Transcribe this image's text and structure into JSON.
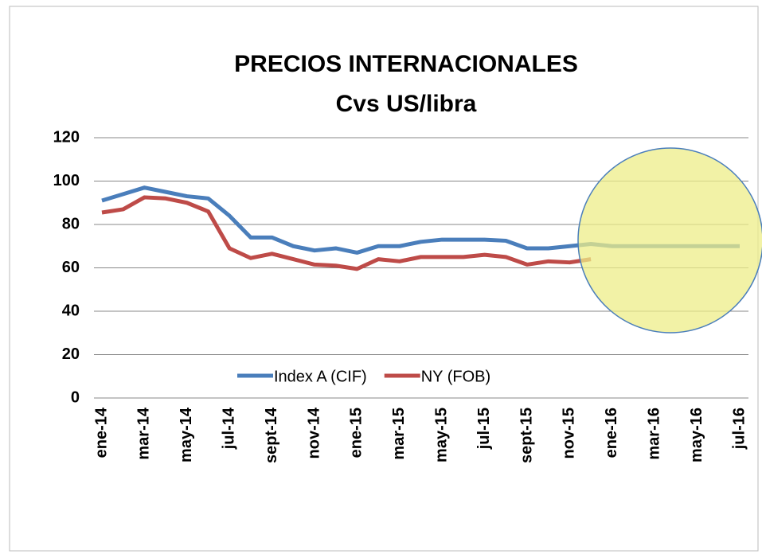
{
  "chart_data": {
    "type": "line",
    "title": "PRECIOS INTERNACIONALES",
    "subtitle": "Cvs US/libra",
    "categories": [
      "ene-14",
      null,
      "mar-14",
      null,
      "may-14",
      null,
      "jul-14",
      null,
      "sept-14",
      null,
      "nov-14",
      null,
      "ene-15",
      null,
      "mar-15",
      null,
      "may-15",
      null,
      "jul-15",
      null,
      "sept-15",
      null,
      "nov-15",
      null,
      "ene-16",
      null,
      "mar-16",
      null,
      "may-16",
      null,
      "jul-16"
    ],
    "series": [
      {
        "name": "Index A (CIF)",
        "color": "#4a7ebb",
        "values": [
          91,
          94,
          97,
          95,
          93,
          92,
          84,
          74,
          74,
          70,
          68,
          69,
          67,
          70,
          70,
          72,
          73,
          73,
          73,
          72.5,
          69,
          69,
          70,
          71,
          70,
          70,
          70,
          70,
          70,
          70,
          70
        ]
      },
      {
        "name": "NY (FOB)",
        "color": "#be4b48",
        "values": [
          85.5,
          87,
          92.5,
          92,
          90,
          86,
          69,
          64.5,
          66.5,
          64,
          61.5,
          61,
          59.5,
          64,
          63,
          65,
          65,
          65,
          66,
          65,
          61.5,
          63,
          62.5,
          64,
          null,
          null,
          null,
          null,
          null,
          null,
          null
        ]
      }
    ],
    "ylim": [
      0,
      120
    ],
    "yticks": [
      0,
      20,
      40,
      60,
      80,
      100,
      120
    ],
    "grid": true,
    "legend": "bottom"
  }
}
